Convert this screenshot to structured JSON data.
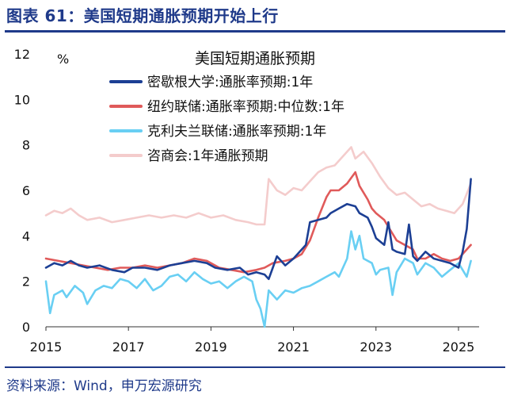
{
  "figure": {
    "title": "图表 61：美国短期通胀预期开始上行",
    "source": "资料来源：Wind，申万宏源研究"
  },
  "chart_data": {
    "type": "line",
    "title": "美国短期通胀预期",
    "ylabel": "%",
    "xlabel": "",
    "ylim": [
      0,
      12
    ],
    "yticks": [
      "0",
      "2",
      "4",
      "6",
      "8",
      "10",
      "12"
    ],
    "xlim": [
      2015,
      2025.5
    ],
    "xticks": [
      "2015",
      "2017",
      "2019",
      "2021",
      "2023",
      "2025"
    ],
    "grid": false,
    "legend_position": "top-center",
    "series": [
      {
        "name": "密歇根大学:通胀率预期:1年",
        "color": "#1c3f94",
        "points": [
          [
            2015.0,
            2.6
          ],
          [
            2015.2,
            2.8
          ],
          [
            2015.4,
            2.7
          ],
          [
            2015.6,
            2.9
          ],
          [
            2015.8,
            2.7
          ],
          [
            2016.0,
            2.6
          ],
          [
            2016.3,
            2.7
          ],
          [
            2016.6,
            2.5
          ],
          [
            2016.9,
            2.4
          ],
          [
            2017.1,
            2.6
          ],
          [
            2017.4,
            2.6
          ],
          [
            2017.7,
            2.5
          ],
          [
            2018.0,
            2.7
          ],
          [
            2018.3,
            2.8
          ],
          [
            2018.6,
            2.9
          ],
          [
            2018.9,
            2.8
          ],
          [
            2019.1,
            2.6
          ],
          [
            2019.4,
            2.5
          ],
          [
            2019.7,
            2.6
          ],
          [
            2019.9,
            2.3
          ],
          [
            2020.1,
            2.4
          ],
          [
            2020.3,
            2.3
          ],
          [
            2020.4,
            2.1
          ],
          [
            2020.5,
            2.6
          ],
          [
            2020.6,
            3.1
          ],
          [
            2020.8,
            2.7
          ],
          [
            2021.0,
            3.0
          ],
          [
            2021.1,
            3.2
          ],
          [
            2021.3,
            3.6
          ],
          [
            2021.4,
            4.6
          ],
          [
            2021.6,
            4.7
          ],
          [
            2021.8,
            4.8
          ],
          [
            2021.9,
            5.0
          ],
          [
            2022.1,
            5.2
          ],
          [
            2022.3,
            5.4
          ],
          [
            2022.5,
            5.3
          ],
          [
            2022.6,
            5.0
          ],
          [
            2022.8,
            4.8
          ],
          [
            2022.9,
            4.4
          ],
          [
            2023.0,
            3.9
          ],
          [
            2023.2,
            3.6
          ],
          [
            2023.3,
            4.6
          ],
          [
            2023.4,
            3.4
          ],
          [
            2023.5,
            3.3
          ],
          [
            2023.7,
            3.2
          ],
          [
            2023.8,
            4.5
          ],
          [
            2023.9,
            3.1
          ],
          [
            2024.0,
            2.9
          ],
          [
            2024.2,
            3.3
          ],
          [
            2024.4,
            3.0
          ],
          [
            2024.6,
            2.9
          ],
          [
            2024.8,
            2.8
          ],
          [
            2024.9,
            2.7
          ],
          [
            2025.0,
            2.6
          ],
          [
            2025.1,
            3.3
          ],
          [
            2025.2,
            4.3
          ],
          [
            2025.3,
            6.5
          ]
        ]
      },
      {
        "name": "纽约联储:通胀率预期:中位数:1年",
        "color": "#e05a5a",
        "points": [
          [
            2015.0,
            3.0
          ],
          [
            2015.3,
            2.9
          ],
          [
            2015.6,
            2.8
          ],
          [
            2015.9,
            2.7
          ],
          [
            2016.2,
            2.6
          ],
          [
            2016.5,
            2.5
          ],
          [
            2016.8,
            2.6
          ],
          [
            2017.1,
            2.6
          ],
          [
            2017.4,
            2.7
          ],
          [
            2017.7,
            2.6
          ],
          [
            2018.0,
            2.7
          ],
          [
            2018.3,
            2.8
          ],
          [
            2018.6,
            3.0
          ],
          [
            2018.9,
            2.9
          ],
          [
            2019.2,
            2.6
          ],
          [
            2019.5,
            2.5
          ],
          [
            2019.8,
            2.4
          ],
          [
            2020.1,
            2.5
          ],
          [
            2020.3,
            2.6
          ],
          [
            2020.5,
            2.8
          ],
          [
            2020.8,
            2.9
          ],
          [
            2021.0,
            3.0
          ],
          [
            2021.2,
            3.2
          ],
          [
            2021.4,
            3.8
          ],
          [
            2021.6,
            4.8
          ],
          [
            2021.8,
            5.7
          ],
          [
            2021.9,
            6.0
          ],
          [
            2022.1,
            6.0
          ],
          [
            2022.3,
            6.3
          ],
          [
            2022.5,
            6.8
          ],
          [
            2022.6,
            6.2
          ],
          [
            2022.8,
            5.6
          ],
          [
            2022.9,
            5.2
          ],
          [
            2023.0,
            5.0
          ],
          [
            2023.2,
            4.7
          ],
          [
            2023.4,
            4.1
          ],
          [
            2023.5,
            3.8
          ],
          [
            2023.7,
            3.6
          ],
          [
            2023.9,
            3.4
          ],
          [
            2024.0,
            3.0
          ],
          [
            2024.2,
            3.0
          ],
          [
            2024.4,
            3.2
          ],
          [
            2024.6,
            3.0
          ],
          [
            2024.8,
            2.9
          ],
          [
            2025.0,
            3.0
          ],
          [
            2025.1,
            3.2
          ],
          [
            2025.3,
            3.6
          ]
        ]
      },
      {
        "name": "克利夫兰联储:通胀率预期:1年",
        "color": "#69cff3",
        "points": [
          [
            2015.0,
            2.0
          ],
          [
            2015.1,
            0.6
          ],
          [
            2015.2,
            1.4
          ],
          [
            2015.4,
            1.6
          ],
          [
            2015.5,
            1.3
          ],
          [
            2015.7,
            1.8
          ],
          [
            2015.9,
            1.5
          ],
          [
            2016.0,
            1.0
          ],
          [
            2016.2,
            1.6
          ],
          [
            2016.4,
            1.8
          ],
          [
            2016.6,
            1.7
          ],
          [
            2016.8,
            2.1
          ],
          [
            2017.0,
            2.0
          ],
          [
            2017.2,
            1.7
          ],
          [
            2017.4,
            2.1
          ],
          [
            2017.6,
            1.6
          ],
          [
            2017.8,
            1.8
          ],
          [
            2018.0,
            2.2
          ],
          [
            2018.2,
            2.3
          ],
          [
            2018.4,
            2.0
          ],
          [
            2018.6,
            2.4
          ],
          [
            2018.8,
            2.1
          ],
          [
            2019.0,
            1.9
          ],
          [
            2019.2,
            2.0
          ],
          [
            2019.4,
            1.7
          ],
          [
            2019.6,
            2.0
          ],
          [
            2019.8,
            2.2
          ],
          [
            2020.0,
            2.0
          ],
          [
            2020.1,
            1.2
          ],
          [
            2020.2,
            0.8
          ],
          [
            2020.3,
            0.0
          ],
          [
            2020.4,
            1.6
          ],
          [
            2020.6,
            1.2
          ],
          [
            2020.8,
            1.6
          ],
          [
            2021.0,
            1.5
          ],
          [
            2021.2,
            1.7
          ],
          [
            2021.4,
            1.8
          ],
          [
            2021.6,
            2.0
          ],
          [
            2021.8,
            2.2
          ],
          [
            2022.0,
            2.4
          ],
          [
            2022.1,
            2.2
          ],
          [
            2022.3,
            3.0
          ],
          [
            2022.4,
            4.2
          ],
          [
            2022.5,
            3.4
          ],
          [
            2022.6,
            4.0
          ],
          [
            2022.7,
            3.0
          ],
          [
            2022.9,
            2.8
          ],
          [
            2023.0,
            2.3
          ],
          [
            2023.1,
            2.5
          ],
          [
            2023.3,
            2.6
          ],
          [
            2023.4,
            1.4
          ],
          [
            2023.5,
            2.4
          ],
          [
            2023.7,
            3.0
          ],
          [
            2023.9,
            2.8
          ],
          [
            2024.0,
            2.3
          ],
          [
            2024.2,
            2.8
          ],
          [
            2024.4,
            2.6
          ],
          [
            2024.6,
            2.2
          ],
          [
            2024.8,
            2.5
          ],
          [
            2025.0,
            2.8
          ],
          [
            2025.2,
            2.2
          ],
          [
            2025.3,
            2.9
          ]
        ]
      },
      {
        "name": "咨商会:1年通胀预期",
        "color": "#f4cccc",
        "points": [
          [
            2015.0,
            4.9
          ],
          [
            2015.2,
            5.1
          ],
          [
            2015.4,
            5.0
          ],
          [
            2015.6,
            5.2
          ],
          [
            2015.8,
            4.9
          ],
          [
            2016.0,
            4.7
          ],
          [
            2016.3,
            4.8
          ],
          [
            2016.6,
            4.6
          ],
          [
            2016.9,
            4.7
          ],
          [
            2017.2,
            4.8
          ],
          [
            2017.5,
            4.9
          ],
          [
            2017.8,
            4.8
          ],
          [
            2018.1,
            4.9
          ],
          [
            2018.4,
            4.8
          ],
          [
            2018.7,
            5.0
          ],
          [
            2019.0,
            4.8
          ],
          [
            2019.3,
            4.9
          ],
          [
            2019.6,
            4.7
          ],
          [
            2019.9,
            4.6
          ],
          [
            2020.1,
            4.5
          ],
          [
            2020.3,
            4.5
          ],
          [
            2020.4,
            6.5
          ],
          [
            2020.6,
            6.0
          ],
          [
            2020.8,
            5.8
          ],
          [
            2021.0,
            6.1
          ],
          [
            2021.2,
            6.0
          ],
          [
            2021.4,
            6.4
          ],
          [
            2021.6,
            6.8
          ],
          [
            2021.8,
            7.0
          ],
          [
            2022.0,
            7.1
          ],
          [
            2022.2,
            7.5
          ],
          [
            2022.4,
            7.9
          ],
          [
            2022.5,
            7.4
          ],
          [
            2022.7,
            7.7
          ],
          [
            2022.9,
            7.2
          ],
          [
            2023.1,
            6.6
          ],
          [
            2023.3,
            6.1
          ],
          [
            2023.5,
            5.8
          ],
          [
            2023.7,
            5.9
          ],
          [
            2023.9,
            5.6
          ],
          [
            2024.1,
            5.3
          ],
          [
            2024.3,
            5.4
          ],
          [
            2024.5,
            5.2
          ],
          [
            2024.7,
            5.1
          ],
          [
            2024.9,
            5.0
          ],
          [
            2025.1,
            5.4
          ],
          [
            2025.3,
            6.3
          ]
        ]
      }
    ]
  }
}
